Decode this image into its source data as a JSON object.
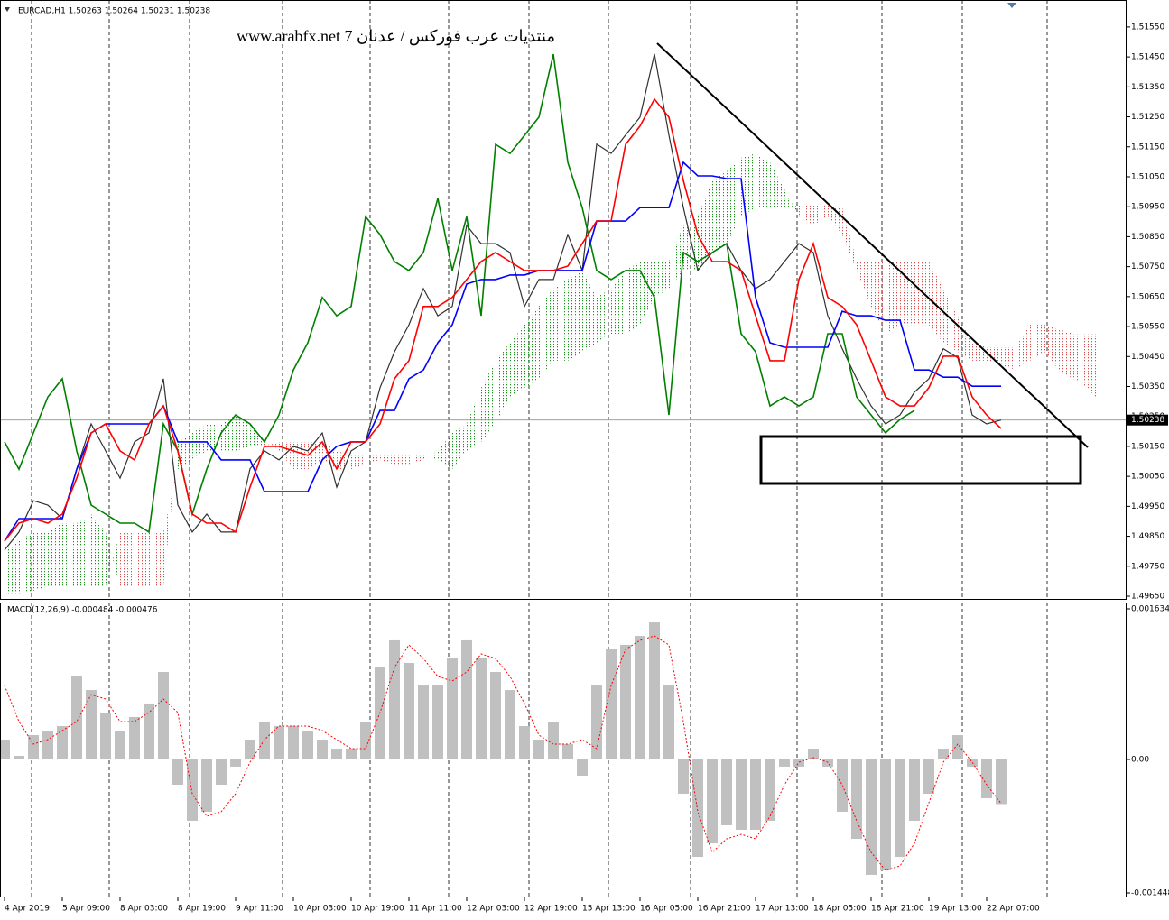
{
  "chart_data": [
    {
      "type": "line",
      "header": "EURCAD,H1  1.50263 1.50264 1.50231 1.50238",
      "annotation": "منتديات عرب فوركس / عدنان 7 www.arabfx.net",
      "current_price": 1.50238,
      "ylim": [
        1.49638,
        1.5164
      ],
      "yticks": [
        {
          "value": 1.4965,
          "label": "1.49650"
        },
        {
          "value": 1.4975,
          "label": "1.49750"
        },
        {
          "value": 1.4985,
          "label": "1.49850"
        },
        {
          "value": 1.4995,
          "label": "1.49950"
        },
        {
          "value": 1.5005,
          "label": "1.50050"
        },
        {
          "value": 1.5015,
          "label": "1.50150"
        },
        {
          "value": 1.5025,
          "label": "1.50250"
        },
        {
          "value": 1.5035,
          "label": "1.50350"
        },
        {
          "value": 1.5045,
          "label": "1.50450"
        },
        {
          "value": 1.5055,
          "label": "1.50550"
        },
        {
          "value": 1.5065,
          "label": "1.50650"
        },
        {
          "value": 1.5075,
          "label": "1.50750"
        },
        {
          "value": 1.5085,
          "label": "1.50850"
        },
        {
          "value": 1.5095,
          "label": "1.50950"
        },
        {
          "value": 1.5105,
          "label": "1.51050"
        },
        {
          "value": 1.5115,
          "label": "1.51150"
        },
        {
          "value": 1.5125,
          "label": "1.51250"
        },
        {
          "value": 1.5135,
          "label": "1.51350"
        },
        {
          "value": 1.5145,
          "label": "1.51450"
        },
        {
          "value": 1.5155,
          "label": "1.51550"
        }
      ],
      "cloud": {
        "up_color": "#1f8f1f",
        "down_color": "#d05050",
        "span_a": [
          1.49804,
          1.49834,
          1.49864,
          1.49864,
          1.49894,
          1.49894,
          1.49924,
          1.49864,
          1.49683,
          1.49683,
          1.49683,
          1.49683,
          1.50165,
          1.50195,
          1.50225,
          1.50225,
          1.50255,
          1.50225,
          1.50165,
          1.50135,
          1.50074,
          1.50074,
          1.50105,
          1.50074,
          1.50074,
          1.5009,
          1.50105,
          1.5009,
          1.5009,
          1.50105,
          1.50135,
          1.50195,
          1.50225,
          1.50346,
          1.50436,
          1.50496,
          1.50556,
          1.50617,
          1.50677,
          1.50707,
          1.50737,
          1.50647,
          1.50677,
          1.50737,
          1.50767,
          1.50767,
          1.50767,
          1.50888,
          1.50918,
          1.51038,
          1.51068,
          1.51113,
          1.51128,
          1.51098,
          1.51008,
          1.50918,
          1.50888,
          1.50918,
          1.50857,
          1.50737,
          1.50617,
          1.50526,
          1.50556,
          1.50556,
          1.50556,
          1.50496,
          1.50466,
          1.50436,
          1.50436,
          1.50421,
          1.50406,
          1.50436,
          1.50466,
          1.50406,
          1.50376,
          1.50346,
          1.50285
        ],
        "span_b": [
          1.49653,
          1.49653,
          1.49668,
          1.49683,
          1.49683,
          1.49683,
          1.49683,
          1.49683,
          1.49864,
          1.49864,
          1.49864,
          1.49864,
          1.50074,
          1.50105,
          1.50135,
          1.50135,
          1.50135,
          1.5015,
          1.5015,
          1.50165,
          1.50165,
          1.50165,
          1.50165,
          1.50135,
          1.5012,
          1.5012,
          1.5012,
          1.5012,
          1.5012,
          1.5012,
          1.50105,
          1.50074,
          1.50135,
          1.50165,
          1.50225,
          1.50315,
          1.50346,
          1.50376,
          1.50436,
          1.50436,
          1.50466,
          1.50496,
          1.50526,
          1.50526,
          1.50556,
          1.50647,
          1.50677,
          1.50737,
          1.50737,
          1.50797,
          1.50827,
          1.50918,
          1.50948,
          1.50948,
          1.50948,
          1.50954,
          1.50954,
          1.50954,
          1.50948,
          1.50767,
          1.50767,
          1.50767,
          1.50767,
          1.50767,
          1.50767,
          1.50677,
          1.50586,
          1.50496,
          1.50481,
          1.50481,
          1.50481,
          1.50556,
          1.50556,
          1.50541,
          1.50526,
          1.50526,
          1.50526
        ]
      },
      "series": [
        {
          "color": "#303030",
          "values": [
            1.49804,
            1.49864,
            1.49969,
            1.49954,
            1.49909,
            1.50075,
            1.50225,
            1.50135,
            1.50044,
            1.50165,
            1.50195,
            1.50376,
            1.49954,
            1.49864,
            1.49924,
            1.49864,
            1.49864,
            1.50075,
            1.50135,
            1.50105,
            1.5015,
            1.50135,
            1.50195,
            1.50014,
            1.50135,
            1.50165,
            1.50346,
            1.50466,
            1.50556,
            1.50677,
            1.50586,
            1.50617,
            1.50888,
            1.50827,
            1.50827,
            1.50797,
            1.50617,
            1.50707,
            1.50707,
            1.50857,
            1.50737,
            1.51159,
            1.51128,
            1.51189,
            1.51249,
            1.5146,
            1.51189,
            1.50948,
            1.50737,
            1.50797,
            1.50827,
            1.50737,
            1.50677,
            1.50707,
            1.50767,
            1.50827,
            1.50797,
            1.50586,
            1.50476,
            1.50376,
            1.50285,
            1.50225,
            1.50255,
            1.50331,
            1.50376,
            1.50476,
            1.50446,
            1.50255,
            1.50225,
            1.50238,
            null,
            null,
            null,
            null,
            null,
            null,
            null
          ]
        },
        {
          "color": "#008000",
          "values": [
            1.50165,
            1.50074,
            1.50195,
            1.50315,
            1.50376,
            1.50135,
            1.49954,
            1.49924,
            1.49894,
            1.49894,
            1.49864,
            1.50225,
            1.50135,
            1.49924,
            1.50074,
            1.50195,
            1.50255,
            1.50225,
            1.50165,
            1.50255,
            1.50405,
            1.50496,
            1.50647,
            1.50586,
            1.50617,
            1.50917,
            1.50857,
            1.50767,
            1.50737,
            1.50797,
            1.50978,
            1.50737,
            1.50917,
            1.50586,
            1.51158,
            1.51128,
            1.51188,
            1.51249,
            1.51459,
            1.51098,
            1.50947,
            1.50737,
            1.50707,
            1.50737,
            1.50737,
            1.50647,
            1.50255,
            1.50797,
            1.50767,
            1.50797,
            1.50827,
            1.50526,
            1.50466,
            1.50285,
            1.50315,
            1.50285,
            1.50315,
            1.50526,
            1.50526,
            1.50315,
            1.50255,
            1.50195,
            1.5024,
            1.5027,
            null,
            null,
            null,
            null,
            null,
            null,
            null,
            null,
            null,
            null,
            null,
            null,
            null
          ]
        },
        {
          "color": "#0000ff",
          "values": [
            1.49834,
            1.49909,
            1.49909,
            1.49909,
            1.49909,
            1.50074,
            1.50195,
            1.50225,
            1.50225,
            1.50225,
            1.50225,
            1.50285,
            1.50165,
            1.50165,
            1.50165,
            1.50105,
            1.50105,
            1.50105,
            1.49999,
            1.49999,
            1.49999,
            1.49999,
            1.50105,
            1.5015,
            1.50165,
            1.50165,
            1.5027,
            1.5027,
            1.50376,
            1.50405,
            1.50496,
            1.50556,
            1.50692,
            1.50707,
            1.50707,
            1.50722,
            1.50722,
            1.50737,
            1.50737,
            1.50737,
            1.50737,
            1.50902,
            1.50902,
            1.50902,
            1.50947,
            1.50947,
            1.50947,
            1.51098,
            1.51053,
            1.51053,
            1.51044,
            1.51044,
            1.50647,
            1.50496,
            1.50481,
            1.50481,
            1.50481,
            1.50481,
            1.50601,
            1.50586,
            1.50586,
            1.50571,
            1.50571,
            1.50405,
            1.50405,
            1.50381,
            1.50381,
            1.50351,
            1.50351,
            1.50351,
            null,
            null,
            null,
            null,
            null,
            null,
            null
          ]
        },
        {
          "color": "#ff0000",
          "values": [
            1.49834,
            1.49894,
            1.49909,
            1.49894,
            1.49924,
            1.50044,
            1.50195,
            1.50225,
            1.50135,
            1.50105,
            1.50225,
            1.50285,
            1.50135,
            1.49924,
            1.49894,
            1.49894,
            1.49864,
            1.50014,
            1.5015,
            1.5015,
            1.50135,
            1.5012,
            1.50165,
            1.50075,
            1.50165,
            1.50165,
            1.50225,
            1.50376,
            1.50436,
            1.50617,
            1.50617,
            1.50647,
            1.50707,
            1.50767,
            1.50797,
            1.50767,
            1.50737,
            1.50737,
            1.50737,
            1.50752,
            1.50827,
            1.50902,
            1.50902,
            1.51158,
            1.51219,
            1.51309,
            1.51249,
            1.51038,
            1.50857,
            1.50767,
            1.50767,
            1.50737,
            1.50586,
            1.50436,
            1.50436,
            1.50707,
            1.50827,
            1.50647,
            1.50617,
            1.50556,
            1.50436,
            1.50315,
            1.50285,
            1.50285,
            1.50346,
            1.50451,
            1.50451,
            1.50315,
            1.50255,
            1.5021,
            null,
            null,
            null,
            null,
            null,
            null,
            null
          ]
        }
      ]
    },
    {
      "type": "bar",
      "header": "MACD(12,26,9) -0.000484 -0.000476",
      "ylim": [
        -0.001497,
        0.0017025
      ],
      "yticks": [
        0.001634,
        {
          "value": 0,
          "label": "0.00"
        },
        -0.001448
      ],
      "categories": [
        "4 Apr 2019",
        null,
        null,
        null,
        "5 Apr 09:00",
        null,
        null,
        null,
        "8 Apr 03:00",
        null,
        null,
        null,
        "8 Apr 19:00",
        null,
        null,
        null,
        "9 Apr 11:00",
        null,
        null,
        null,
        "10 Apr 03:00",
        null,
        null,
        null,
        "10 Apr 19:00",
        null,
        null,
        null,
        "11 Apr 11:00",
        null,
        null,
        null,
        "12 Apr 03:00",
        null,
        null,
        null,
        "12 Apr 19:00",
        null,
        null,
        null,
        "15 Apr 13:00",
        null,
        null,
        null,
        "16 Apr 05:00",
        null,
        null,
        null,
        "16 Apr 21:00",
        null,
        null,
        null,
        "17 Apr 13:00",
        null,
        null,
        null,
        "18 Apr 05:00",
        null,
        null,
        null,
        "18 Apr 21:00",
        null,
        null,
        null,
        "19 Apr 13:00",
        null,
        null,
        null,
        "22 Apr 07:00",
        null,
        null,
        null,
        null,
        null,
        null,
        null,
        null
      ],
      "series": [
        {
          "color": "#c0c0c0",
          "values": [
            0.000215,
            3.9e-05,
            0.000264,
            0.000313,
            0.000362,
            0.0009,
            0.000753,
            0.000509,
            0.000313,
            0.00046,
            0.000607,
            0.000949,
            -0.000274,
            -0.000665,
            -0.000567,
            -0.000274,
            -7.8e-05,
            0.000215,
            0.000411,
            0.000362,
            0.000362,
            0.000313,
            0.000215,
            0.000117,
            0.000117,
            0.000411,
            0.000998,
            0.001292,
            0.001047,
            0.000802,
            0.000802,
            0.001096,
            0.001292,
            0.001096,
            0.000949,
            0.000753,
            0.000362,
            0.000215,
            0.000411,
            0.000166,
            -0.000176,
            0.000802,
            0.001194,
            0.001243,
            0.00134,
            0.001487,
            0.000802,
            -0.000372,
            -0.001057,
            -0.00091,
            -0.000714,
            -0.000763,
            -0.000763,
            -0.000665,
            -7.8e-05,
            -7.8e-05,
            0.000117,
            -7.8e-05,
            -0.000567,
            -0.000861,
            -0.001252,
            -0.001203,
            -0.001057,
            -0.000665,
            -0.000372,
            0.000117,
            0.000264,
            -7.8e-05,
            -0.000421,
            -0.000484,
            null,
            null,
            null,
            null,
            null,
            null,
            null
          ]
        },
        {
          "color": "#ff0000",
          "values": [
            0.000802,
            0.000411,
            0.000166,
            0.000215,
            0.000313,
            0.000411,
            0.000704,
            0.000656,
            0.000411,
            0.000411,
            0.000509,
            0.000656,
            0.000509,
            -0.000372,
            -0.000616,
            -0.000567,
            -0.000372,
            -2.9e-05,
            0.000215,
            0.000362,
            0.000362,
            0.000362,
            0.000313,
            0.000215,
            0.000117,
            0.000117,
            0.000509,
            0.000998,
            0.001243,
            0.001096,
            0.0009,
            0.000851,
            0.000949,
            0.001145,
            0.001096,
            0.0009,
            0.000607,
            0.000264,
            0.000166,
            0.000166,
            0.000215,
            0.000117,
            0.000802,
            0.001194,
            0.001292,
            0.00134,
            0.001243,
            0.000411,
            -0.000567,
            -0.001008,
            -0.000861,
            -0.000812,
            -0.000861,
            -0.000616,
            -0.000274,
            -2.9e-05,
            2e-05,
            -2.9e-05,
            -0.000274,
            -0.000665,
            -0.001008,
            -0.001203,
            -0.001155,
            -0.00091,
            -0.00047,
            -2.9e-05,
            0.000166,
            -2.9e-05,
            -0.000274,
            -0.000476,
            null,
            null,
            null,
            null,
            null,
            null,
            null
          ]
        }
      ]
    }
  ]
}
